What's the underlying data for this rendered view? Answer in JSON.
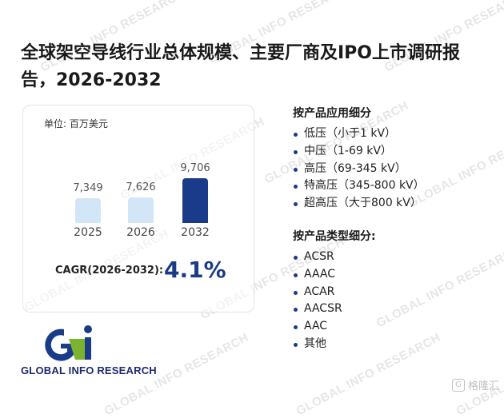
{
  "title": "全球架空导线行业总体规模、主要厂商及IPO上市调研报告，2026-2032",
  "chart_data": {
    "type": "bar",
    "unit": "单位: 百万美元",
    "categories": [
      "2025",
      "2026",
      "2032"
    ],
    "values": [
      7349,
      7626,
      9706
    ],
    "value_labels": [
      "7,349",
      "7,626",
      "9,706"
    ],
    "colors": [
      "#d3e6f7",
      "#d3e6f7",
      "#1a3a8a"
    ]
  },
  "cagr": {
    "label": "CAGR(2026-2032):",
    "value": "4.1%"
  },
  "application": {
    "title": "按产品应用细分",
    "items": [
      "低压（小于1 kV）",
      "中压（1-69 kV）",
      "高压（69-345 kV）",
      "特高压（345-800 kV）",
      "超高压（大于800 kV）"
    ]
  },
  "product_type": {
    "title": "按产品类型细分:",
    "items": [
      "ACSR",
      "AAAC",
      "ACAR",
      "AACSR",
      "AAC",
      "其他"
    ]
  },
  "logo": {
    "text": "GLOBAL INFO RESEARCH"
  },
  "watermark": {
    "text": "GLOBAL INFO RESEARCH"
  },
  "corner_brand": {
    "text": "格隆汇"
  }
}
